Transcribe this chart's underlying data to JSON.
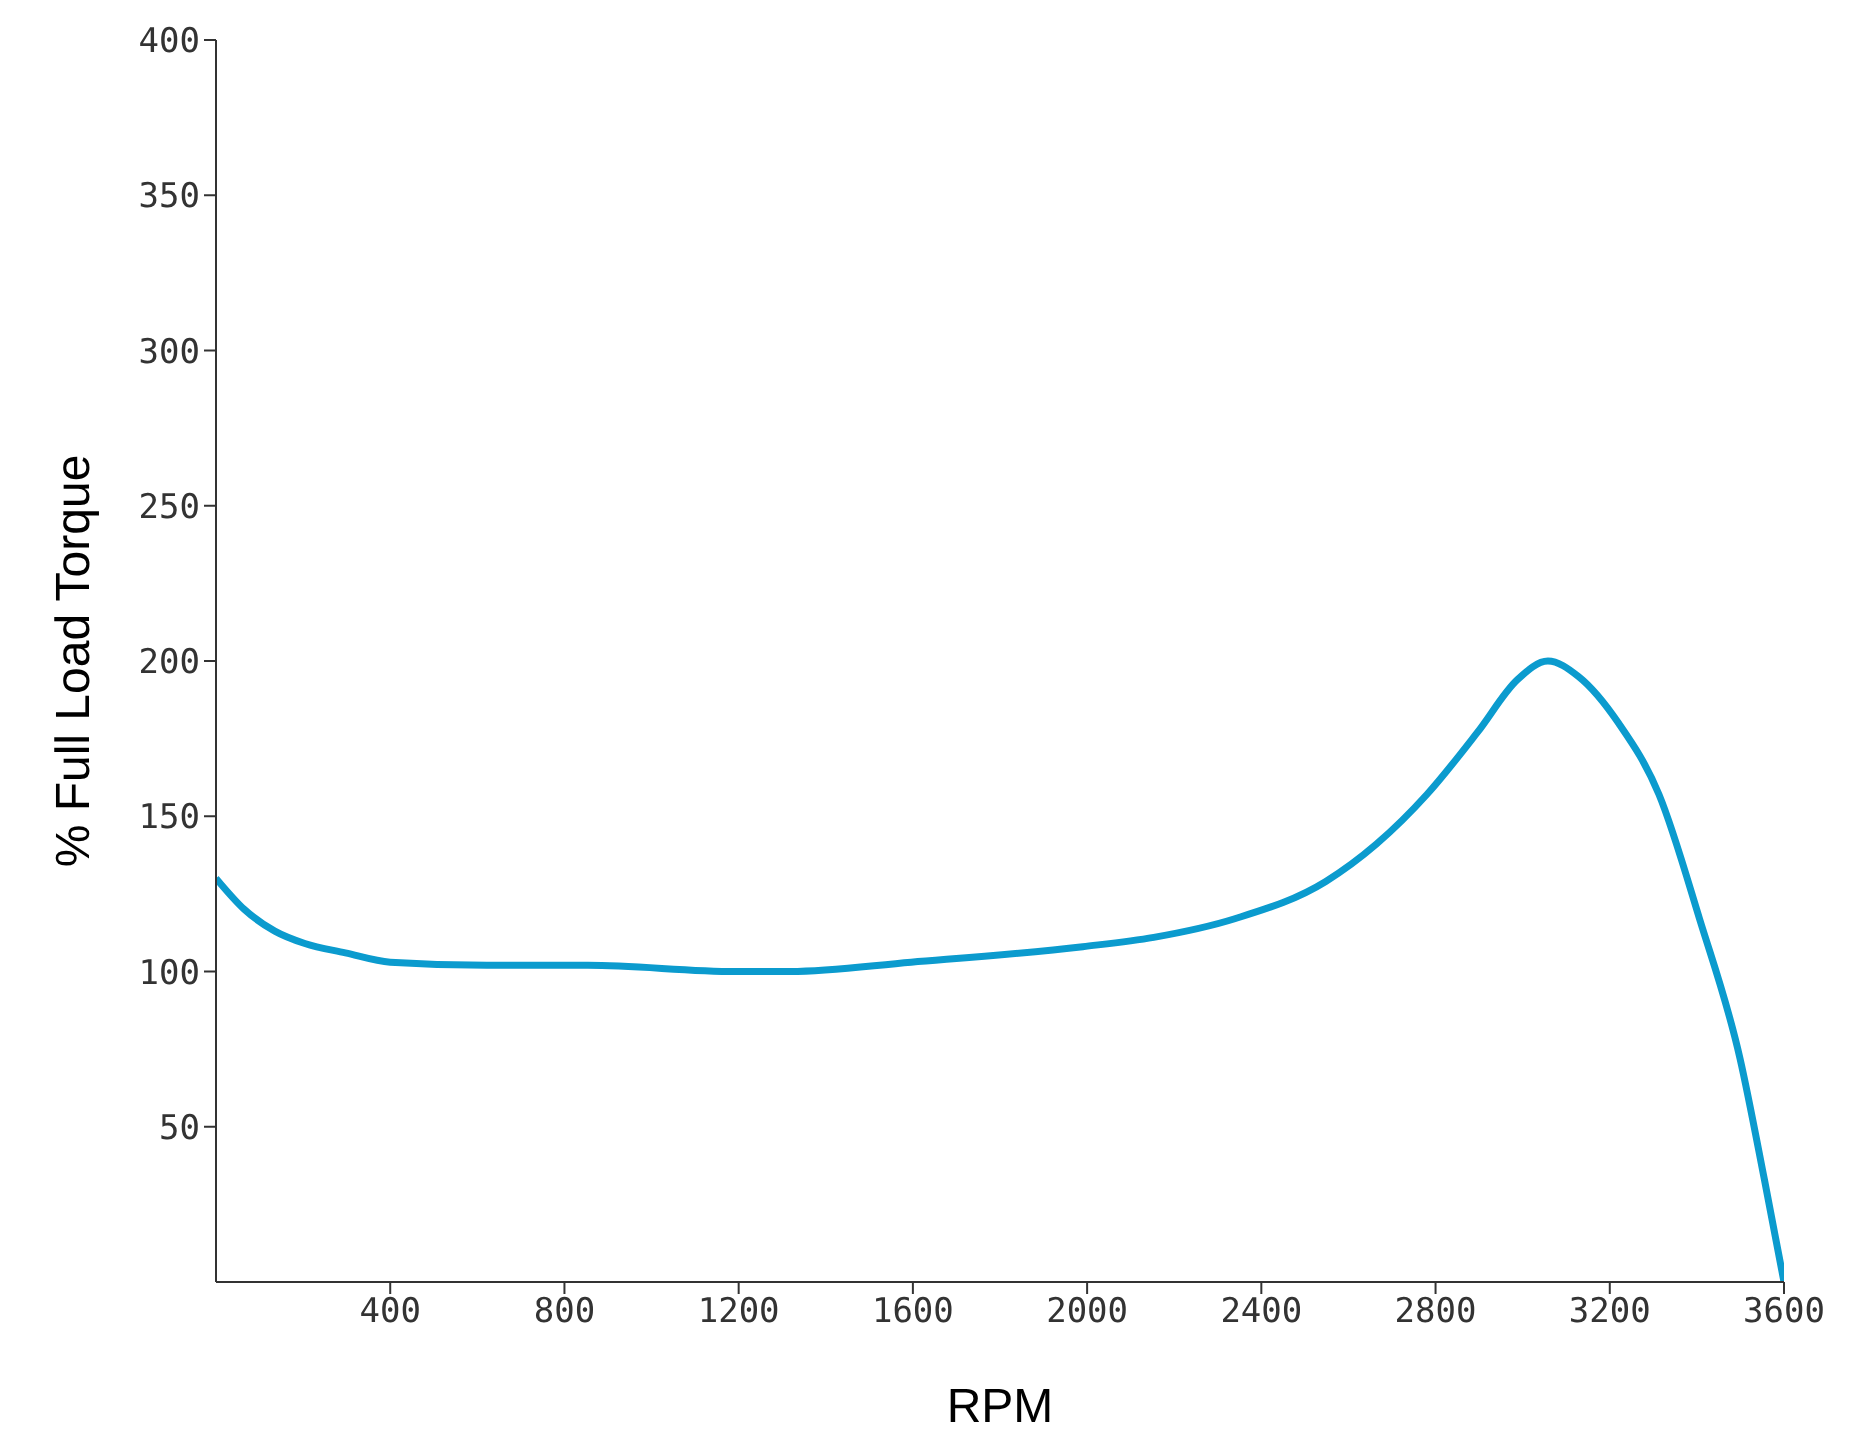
{
  "chart_data": {
    "type": "line",
    "xlabel": "RPM",
    "ylabel": "% Full Load Torque",
    "x": [
      0,
      65,
      135,
      204,
      297,
      400,
      622,
      854,
      1193,
      1318,
      1596,
      1990,
      2153,
      2339,
      2548,
      2664,
      2780,
      2896,
      2988,
      3058,
      3128,
      3220,
      3313,
      3406,
      3499,
      3555,
      3600
    ],
    "series": [
      {
        "color": "#0b9bce",
        "values": [
          130,
          120,
          113,
          109,
          106,
          103,
          102,
          102,
          100,
          100,
          103,
          108,
          111,
          117,
          129,
          141,
          157,
          177,
          194,
          200,
          195,
          180,
          157,
          117,
          72,
          33,
          0
        ]
      }
    ],
    "xlim": [
      0,
      3600
    ],
    "xticks": [
      400,
      800,
      1200,
      1600,
      2000,
      2400,
      2800,
      3200,
      3600
    ],
    "ylim": [
      0,
      400
    ],
    "yticks": [
      50,
      100,
      150,
      200,
      250,
      300,
      350,
      400
    ],
    "grid": false,
    "legend": false,
    "marker": "none",
    "line_style": "solid"
  }
}
